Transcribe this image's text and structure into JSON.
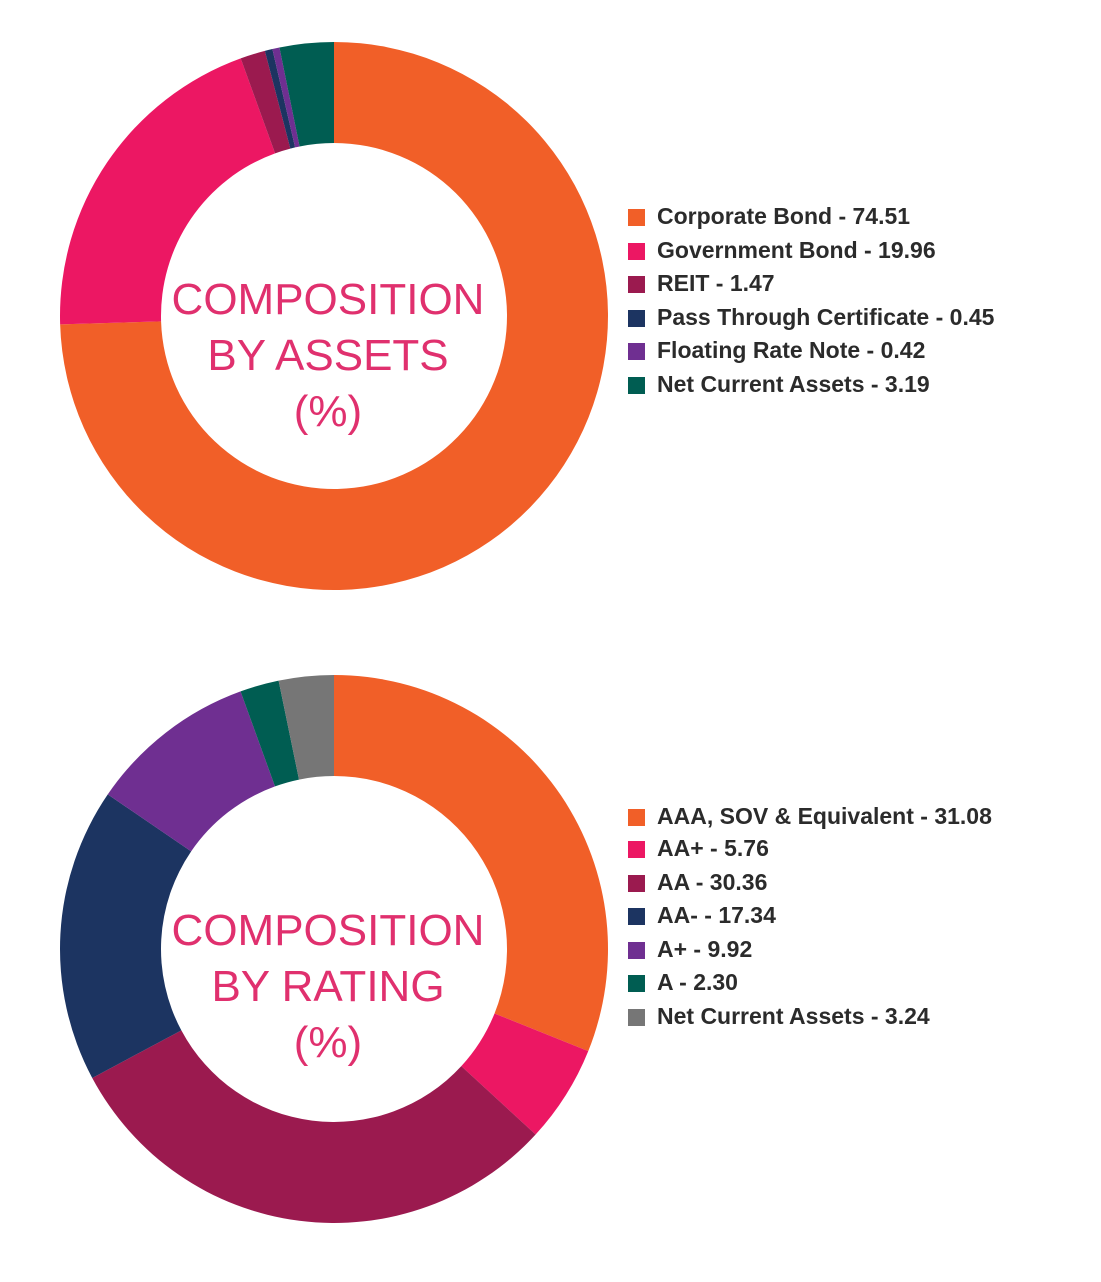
{
  "chart_data": [
    {
      "type": "pie",
      "variant": "donut",
      "title": "COMPOSITION BY ASSETS (%)",
      "title_lines": [
        "COMPOSITION",
        "BY ASSETS",
        "(%)"
      ],
      "legend_position": "right",
      "series": [
        {
          "label": "Corporate Bond",
          "value": 74.51,
          "legend": "Corporate Bond - 74.51",
          "color": "#f15f28"
        },
        {
          "label": "Government Bond",
          "value": 19.96,
          "legend": "Government Bond - 19.96",
          "color": "#ec1763"
        },
        {
          "label": "REIT",
          "value": 1.47,
          "legend": "REIT - 1.47",
          "color": "#9b1a4f"
        },
        {
          "label": "Pass Through Certificate",
          "value": 0.45,
          "legend": "Pass Through Certificate - 0.45",
          "color": "#1c3461"
        },
        {
          "label": "Floating Rate Note",
          "value": 0.42,
          "legend": "Floating Rate Note - 0.42",
          "color": "#6f2f91"
        },
        {
          "label": "Net Current Assets",
          "value": 3.19,
          "legend": "Net Current Assets - 3.19",
          "color": "#005d52"
        }
      ]
    },
    {
      "type": "pie",
      "variant": "donut",
      "title": "COMPOSITION BY RATING (%)",
      "title_lines": [
        "COMPOSITION",
        "BY RATING",
        "(%)"
      ],
      "legend_position": "right",
      "series": [
        {
          "label": "AAA, SOV & Equivalent",
          "value": 31.08,
          "legend": "AAA, SOV & Equivalent - 31.08",
          "color": "#f15f28"
        },
        {
          "label": "AA+",
          "value": 5.76,
          "legend": "AA+ - 5.76",
          "color": "#ec1763"
        },
        {
          "label": "AA",
          "value": 30.36,
          "legend": "AA - 30.36",
          "color": "#9b1a4f"
        },
        {
          "label": "AA-",
          "value": 17.34,
          "legend": "AA- - 17.34",
          "color": "#1c3461"
        },
        {
          "label": "A+",
          "value": 9.92,
          "legend": "A+ - 9.92",
          "color": "#6f2f91"
        },
        {
          "label": "A",
          "value": 2.3,
          "legend": "A - 2.30",
          "color": "#005d52"
        },
        {
          "label": "Net Current Assets",
          "value": 3.24,
          "legend": "Net Current Assets - 3.24",
          "color": "#767676"
        }
      ]
    }
  ]
}
